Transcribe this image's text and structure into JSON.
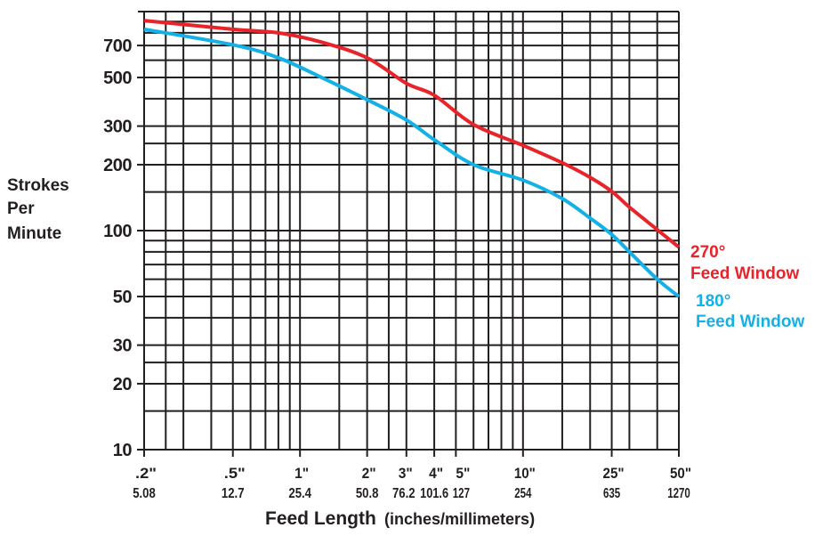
{
  "chart_data": {
    "type": "line",
    "x_scale": "log",
    "y_scale": "log",
    "xlim": [
      0.2,
      50
    ],
    "ylim": [
      10,
      1000
    ],
    "grid": true,
    "ylabel": [
      "Strokes",
      "Per",
      "Minute"
    ],
    "xlabel": "Feed Length",
    "xlabel_units": "(inches/millimeters)",
    "y_ticks": [
      {
        "value": 700,
        "label": "700"
      },
      {
        "value": 500,
        "label": "500"
      },
      {
        "value": 300,
        "label": "300"
      },
      {
        "value": 200,
        "label": "200"
      },
      {
        "value": 100,
        "label": "100"
      },
      {
        "value": 50,
        "label": "50"
      },
      {
        "value": 30,
        "label": "30"
      },
      {
        "value": 20,
        "label": "20"
      },
      {
        "value": 10,
        "label": "10"
      }
    ],
    "x_ticks": [
      {
        "value": 0.2,
        "inches": ".2\"",
        "mm": "5.08"
      },
      {
        "value": 0.5,
        "inches": ".5\"",
        "mm": "12.7"
      },
      {
        "value": 1,
        "inches": "1\"",
        "mm": "25.4"
      },
      {
        "value": 2,
        "inches": "2\"",
        "mm": "50.8"
      },
      {
        "value": 3,
        "inches": "3\"",
        "mm": "76.2"
      },
      {
        "value": 4,
        "inches": "4\"",
        "mm": "101.6"
      },
      {
        "value": 5,
        "inches": "5\"",
        "mm": "127"
      },
      {
        "value": 10,
        "inches": "10\"",
        "mm": "254"
      },
      {
        "value": 25,
        "inches": "25\"",
        "mm": "635"
      },
      {
        "value": 50,
        "inches": "50\"",
        "mm": "1270"
      }
    ],
    "x_gridlines": [
      0.2,
      0.25,
      0.3,
      0.4,
      0.5,
      0.6,
      0.7,
      0.8,
      0.9,
      1,
      1.5,
      2,
      2.5,
      3,
      4,
      5,
      6,
      7,
      8,
      9,
      10,
      15,
      20,
      25,
      30,
      40,
      50
    ],
    "y_gridlines": [
      10,
      15,
      20,
      25,
      30,
      40,
      50,
      60,
      70,
      80,
      90,
      100,
      150,
      200,
      250,
      300,
      400,
      500,
      600,
      700,
      800,
      900,
      1000
    ],
    "series": [
      {
        "name": "270°",
        "name_line2": "Feed Window",
        "color": "#e8232a",
        "x": [
          0.2,
          0.5,
          0.8,
          1.25,
          2,
          3,
          4,
          6,
          10,
          15,
          20,
          25,
          30,
          40,
          50
        ],
        "y": [
          910,
          830,
          800,
          725,
          615,
          470,
          415,
          305,
          245,
          204,
          175,
          151,
          128,
          101,
          84
        ]
      },
      {
        "name": "180°",
        "name_line2": "Feed Window",
        "color": "#14b1e7",
        "x": [
          0.2,
          0.5,
          0.8,
          1.25,
          2,
          3,
          4,
          6,
          10,
          15,
          20,
          25,
          30,
          40,
          50
        ],
        "y": [
          830,
          705,
          615,
          500,
          396,
          320,
          260,
          200,
          170,
          140,
          114,
          96,
          80,
          60,
          50
        ]
      }
    ]
  }
}
